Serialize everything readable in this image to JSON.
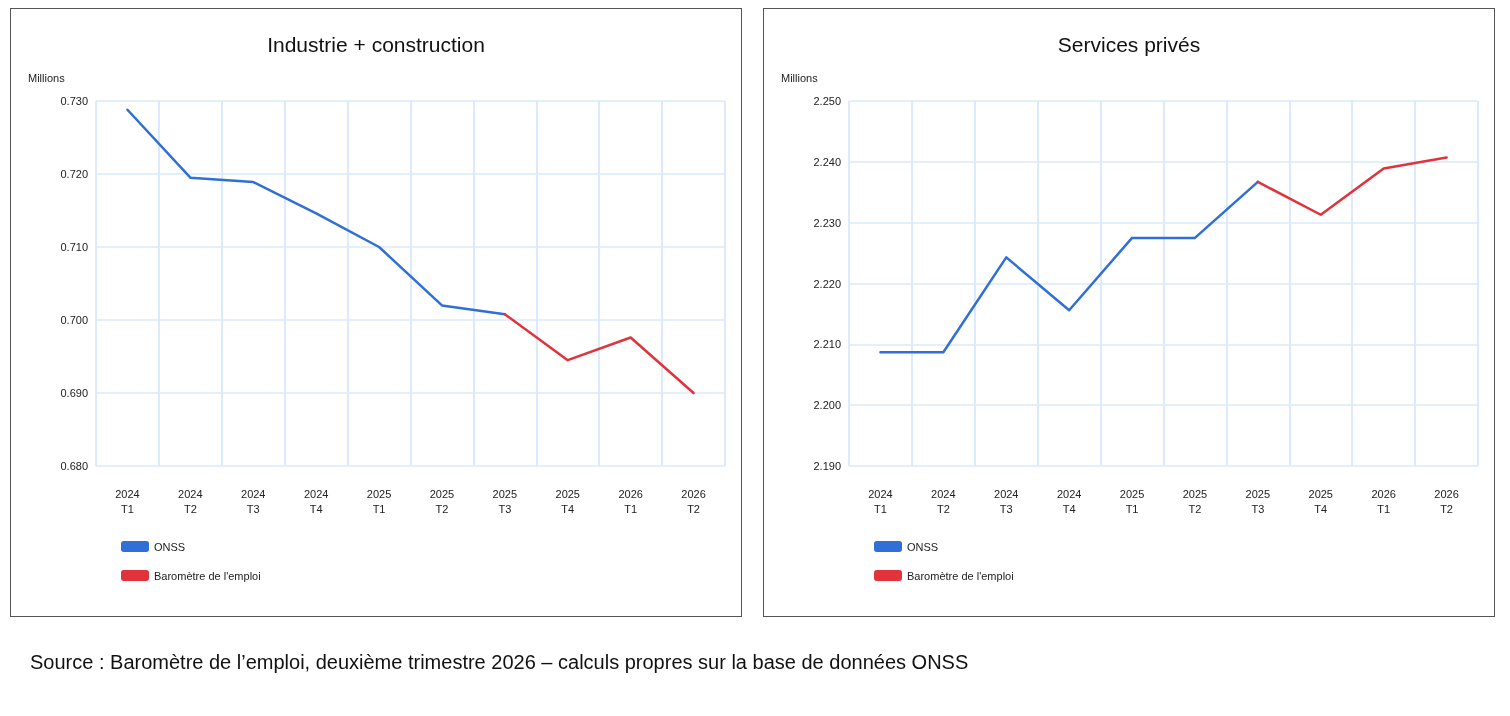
{
  "chart_data": [
    {
      "type": "line",
      "title": "Industrie + construction",
      "ylabel": "Millions",
      "categories": [
        "2024\nT1",
        "2024\nT2",
        "2024\nT3",
        "2024\nT4",
        "2025\nT1",
        "2025\nT2",
        "2025\nT3",
        "2025\nT4",
        "2026\nT1",
        "2026\nT2"
      ],
      "series": [
        {
          "name": "ONSS",
          "color": "#2f6fd6",
          "values": [
            0.7288,
            0.7195,
            0.7189,
            0.7146,
            0.71,
            0.702,
            0.7008,
            null,
            null,
            null
          ]
        },
        {
          "name": "Baromètre de l'emploi",
          "color": "#e0333c",
          "values": [
            null,
            null,
            null,
            null,
            null,
            null,
            0.7008,
            0.6945,
            0.6976,
            0.69
          ]
        }
      ],
      "ylim": [
        0.68,
        0.73
      ],
      "yticks": [
        {
          "value": 0.68,
          "label": "0.680"
        },
        {
          "value": 0.69,
          "label": "0.690"
        },
        {
          "value": 0.7,
          "label": "0.700"
        },
        {
          "value": 0.71,
          "label": "0.710"
        },
        {
          "value": 0.72,
          "label": "0.720"
        },
        {
          "value": 0.73,
          "label": "0.730"
        }
      ],
      "grid": true,
      "legend": "bottom left",
      "marker": "none",
      "annotations": [
        "Source : Baromètre de l’emploi, deuxième trimestre 2026 – calculs propres sur la base de données ONSS"
      ]
    },
    {
      "type": "line",
      "title": "Services privés",
      "ylabel": "Millions",
      "categories": [
        "2024\nT1",
        "2024\nT2",
        "2024\nT3",
        "2024\nT4",
        "2025\nT1",
        "2025\nT2",
        "2025\nT3",
        "2025\nT4",
        "2026\nT1",
        "2026\nT2"
      ],
      "series": [
        {
          "name": "ONSS",
          "color": "#2f6fd6",
          "values": [
            2.2087,
            2.2087,
            2.2243,
            2.2156,
            2.2275,
            2.2275,
            2.2367,
            null,
            null,
            null
          ]
        },
        {
          "name": "Baromètre de l'emploi",
          "color": "#e0333c",
          "values": [
            null,
            null,
            null,
            null,
            null,
            null,
            2.2367,
            2.2313,
            2.2389,
            2.2407
          ]
        }
      ],
      "ylim": [
        2.19,
        2.25
      ],
      "yticks": [
        {
          "value": 2.19,
          "label": "2.190"
        },
        {
          "value": 2.2,
          "label": "2.200"
        },
        {
          "value": 2.21,
          "label": "2.210"
        },
        {
          "value": 2.22,
          "label": "2.220"
        },
        {
          "value": 2.23,
          "label": "2.230"
        },
        {
          "value": 2.24,
          "label": "2.240"
        },
        {
          "value": 2.25,
          "label": "2.250"
        }
      ],
      "grid": true,
      "legend": "bottom left",
      "marker": "none"
    }
  ]
}
